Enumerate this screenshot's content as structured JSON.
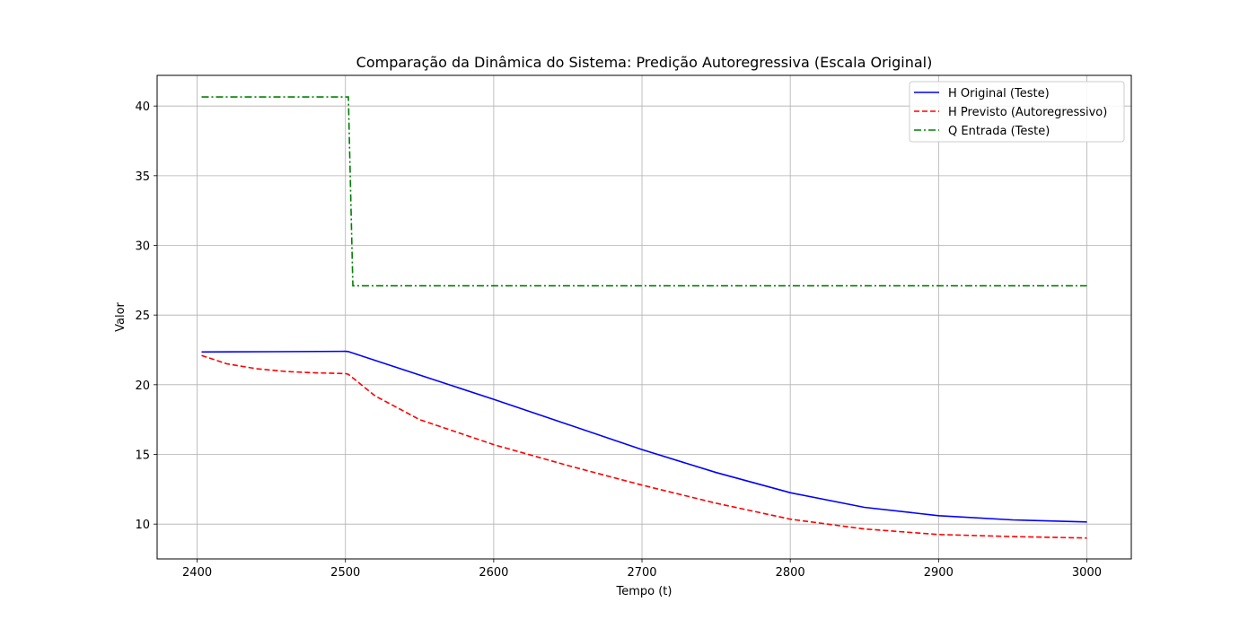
{
  "chart_data": {
    "type": "line",
    "title": "Comparação da Dinâmica do Sistema: Predição Autoregressiva (Escala Original)",
    "xlabel": "Tempo (t)",
    "ylabel": "Valor",
    "xlim": [
      2373,
      3030
    ],
    "ylim": [
      7.5,
      42.2
    ],
    "xticks": [
      2400,
      2500,
      2600,
      2700,
      2800,
      2900,
      3000
    ],
    "yticks": [
      10,
      15,
      20,
      25,
      30,
      35,
      40
    ],
    "grid": true,
    "legend_position": "top-right",
    "series": [
      {
        "name": "H Original (Teste)",
        "color": "#0000ff",
        "style": "solid",
        "x": [
          2403,
          2450,
          2500,
          2502,
          2550,
          2600,
          2650,
          2700,
          2750,
          2800,
          2850,
          2900,
          2950,
          3000
        ],
        "y": [
          22.35,
          22.37,
          22.4,
          22.38,
          20.7,
          18.95,
          17.15,
          15.35,
          13.7,
          12.25,
          11.2,
          10.6,
          10.3,
          10.15
        ]
      },
      {
        "name": "H Previsto (Autoregressivo)",
        "color": "#ff0000",
        "style": "dashed",
        "x": [
          2403,
          2420,
          2440,
          2460,
          2480,
          2500,
          2502,
          2520,
          2550,
          2600,
          2650,
          2700,
          2750,
          2800,
          2850,
          2900,
          2950,
          3000
        ],
        "y": [
          22.1,
          21.5,
          21.15,
          20.95,
          20.85,
          20.8,
          20.75,
          19.2,
          17.5,
          15.7,
          14.2,
          12.8,
          11.5,
          10.35,
          9.65,
          9.25,
          9.1,
          9.0
        ]
      },
      {
        "name": "Q Entrada (Teste)",
        "color": "#008000",
        "style": "dashdot",
        "x": [
          2403,
          2502,
          2505,
          3000
        ],
        "y": [
          40.65,
          40.65,
          27.1,
          27.1
        ]
      }
    ]
  }
}
